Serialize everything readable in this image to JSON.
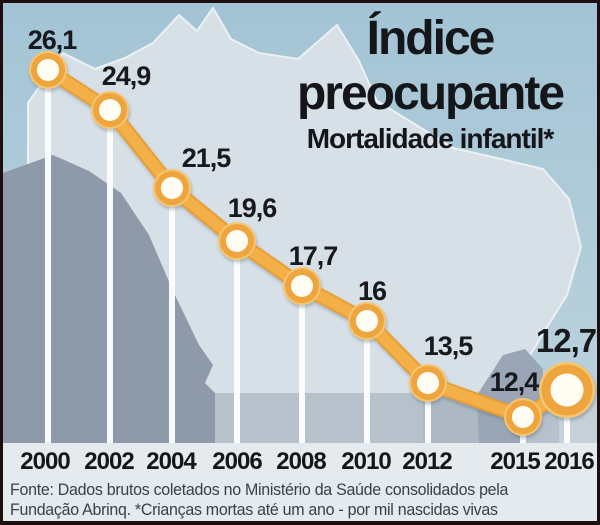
{
  "header": {
    "title_line1": "Índice",
    "title_line2": "preocupante",
    "subtitle": "Mortalidade infantil*"
  },
  "chart_data": {
    "type": "line",
    "title": "Índice preocupante",
    "subtitle": "Mortalidade infantil*",
    "categories": [
      "2000",
      "2002",
      "2004",
      "2006",
      "2008",
      "2010",
      "2012",
      "2015",
      "2016"
    ],
    "values": [
      26.1,
      24.9,
      21.5,
      19.6,
      17.7,
      16,
      13.5,
      12.4,
      12.7
    ],
    "point_labels": [
      "26,1",
      "24,9",
      "21,5",
      "19,6",
      "17,7",
      "16",
      "13,5",
      "12,4",
      "12,7"
    ],
    "highlight_index": 8,
    "xlabel": "",
    "ylabel": "",
    "ylim": [
      12,
      27
    ],
    "grid": false,
    "legend": "none",
    "unit_note": "por mil nascidas vivas",
    "background_motif": "brazil-map-silhouette"
  },
  "colors": {
    "line_outer": "#e89e33",
    "line_inner": "#f3b04a",
    "marker_glow": "#f6c571",
    "marker_ring": "#efa53d",
    "marker_fill": "#fffdf3",
    "drop_bar": "#fbfdfd",
    "text_black": "#17191c",
    "background_blue": "#a7c6d6",
    "map_light": "#d7e0e6",
    "map_dark": "#8e99aa",
    "band_mid": "#b6c1cb",
    "footer_text": "#394049",
    "frame_border": "#1d0e10"
  },
  "footer": {
    "line1": "Fonte: Dados brutos coletados no Ministério da Saúde consolidados pela",
    "line2": "Fundação Abrinq. *Crianças mortas até um ano - por mil nascidas vivas"
  }
}
